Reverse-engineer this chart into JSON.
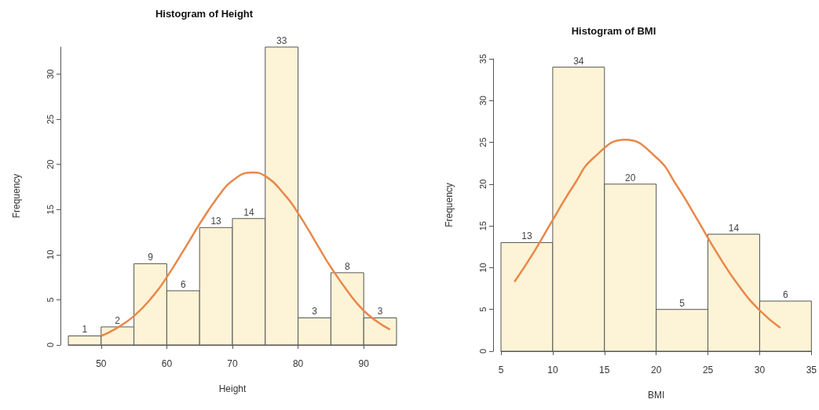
{
  "chart_data": [
    {
      "type": "histogram",
      "title": "Histogram of Height",
      "xlabel": "Height",
      "ylabel": "Frequency",
      "xlim": [
        45,
        95
      ],
      "xticks": [
        50,
        60,
        70,
        80,
        90
      ],
      "ylim": [
        0,
        33
      ],
      "yticks": [
        0,
        5,
        10,
        15,
        20,
        25,
        30
      ],
      "grid": false,
      "series": [
        {
          "color": "#fdf3d6",
          "bins": [
            45,
            50,
            55,
            60,
            65,
            70,
            75,
            80,
            85,
            90,
            95
          ],
          "values": [
            1,
            2,
            9,
            6,
            13,
            14,
            33,
            3,
            8,
            3
          ],
          "value_labels": [
            "1",
            "2",
            "9",
            "6",
            "13",
            "14",
            "33",
            "3",
            "8",
            "3"
          ]
        },
        {
          "type": "line",
          "color": "#e8884a",
          "x": [
            50,
            52,
            55,
            58,
            60,
            63,
            65,
            68,
            70,
            73,
            75,
            78,
            80,
            83,
            85,
            88,
            90,
            92,
            94
          ],
          "values": [
            1.0,
            1.7,
            3.2,
            5.5,
            7.5,
            11.0,
            13.4,
            16.6,
            18.2,
            19.1,
            18.7,
            16.6,
            14.6,
            11.0,
            8.6,
            5.5,
            3.8,
            2.6,
            1.7
          ]
        }
      ]
    },
    {
      "type": "histogram",
      "title": "Histogram of BMI",
      "xlabel": "BMI",
      "ylabel": "Frequency",
      "xlim": [
        5,
        35
      ],
      "xticks": [
        5,
        10,
        15,
        20,
        25,
        30,
        35
      ],
      "ylim": [
        0,
        35
      ],
      "yticks": [
        0,
        5,
        10,
        15,
        20,
        25,
        30,
        35
      ],
      "grid": false,
      "series": [
        {
          "color": "#fdf3d6",
          "bins": [
            5,
            10,
            15,
            20,
            25,
            30,
            35
          ],
          "values": [
            13,
            34,
            20,
            5,
            14,
            6
          ],
          "value_labels": [
            "13",
            "34",
            "20",
            "5",
            "14",
            "6"
          ]
        },
        {
          "type": "line",
          "color": "#e8884a",
          "x": [
            6.3,
            8,
            10,
            12,
            14,
            17,
            20,
            22,
            24,
            26,
            28,
            30,
            32
          ],
          "values": [
            8.3,
            11.5,
            15.7,
            19.8,
            23.2,
            25.3,
            23.2,
            19.8,
            15.7,
            11.5,
            7.8,
            4.9,
            2.8
          ]
        }
      ]
    }
  ]
}
